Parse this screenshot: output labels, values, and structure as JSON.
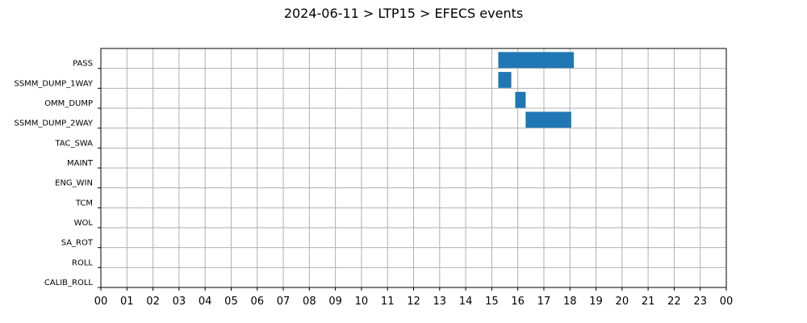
{
  "chart_data": {
    "type": "bar",
    "orientation": "horizontal-timeline",
    "title": "2024-06-11 > LTP15 > EFECS events",
    "xlabel": "",
    "ylabel": "",
    "grid": true,
    "xlim": [
      0,
      24
    ],
    "x_tick_labels": [
      "00",
      "01",
      "02",
      "03",
      "04",
      "05",
      "06",
      "07",
      "08",
      "09",
      "10",
      "11",
      "12",
      "13",
      "14",
      "15",
      "16",
      "17",
      "18",
      "19",
      "20",
      "21",
      "22",
      "23",
      "00"
    ],
    "categories": [
      "PASS",
      "SSMM_DUMP_1WAY",
      "OMM_DUMP",
      "SSMM_DUMP_2WAY",
      "TAC_SWA",
      "MAINT",
      "ENG_WIN",
      "TCM",
      "WOL",
      "SA_ROT",
      "ROLL",
      "CALIB_ROLL"
    ],
    "bar_color": "#1f77b4",
    "events": [
      {
        "category": "PASS",
        "start": 15.25,
        "end": 18.15
      },
      {
        "category": "SSMM_DUMP_1WAY",
        "start": 15.25,
        "end": 15.75
      },
      {
        "category": "OMM_DUMP",
        "start": 15.9,
        "end": 16.3
      },
      {
        "category": "SSMM_DUMP_2WAY",
        "start": 16.3,
        "end": 18.05
      }
    ]
  }
}
